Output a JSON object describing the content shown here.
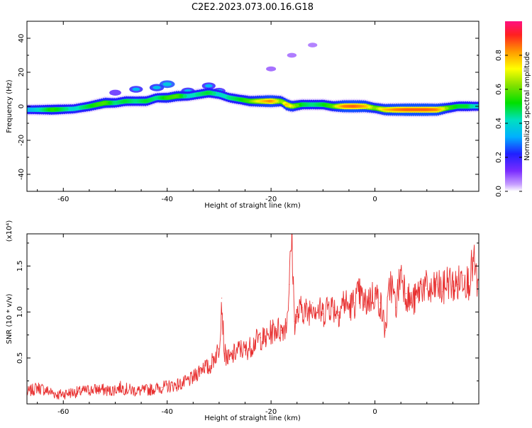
{
  "figure_title": "C2E2.2023.073.00.16.G18",
  "colorbar": {
    "label": "Normalized spectral amplitude",
    "ticks": [
      "0.0",
      "0.2",
      "0.4",
      "0.6",
      "0.8"
    ],
    "tick_values": [
      0.0,
      0.2,
      0.4,
      0.6,
      0.8
    ],
    "range": [
      0,
      1
    ]
  },
  "chart_data": [
    {
      "type": "heatmap",
      "title": "",
      "xlabel": "Height of straight line (km)",
      "ylabel": "Frequency (Hz)",
      "xlim": [
        -67,
        20
      ],
      "ylim": [
        -50,
        50
      ],
      "xticks": [
        "-60",
        "-40",
        "-20",
        "0"
      ],
      "xtick_values": [
        -60,
        -40,
        -20,
        0
      ],
      "yticks": [
        "40",
        "20",
        "0",
        "-20",
        "-40"
      ],
      "ytick_values": [
        40,
        20,
        0,
        -20,
        -40
      ],
      "ridge": {
        "x": [
          -66,
          -62,
          -58,
          -55,
          -52,
          -50,
          -48,
          -46,
          -44,
          -42,
          -40,
          -38,
          -36,
          -34,
          -32,
          -30,
          -28,
          -26,
          -24,
          -22,
          -20,
          -18,
          -17,
          -16,
          -14,
          -12,
          -10,
          -8,
          -6,
          -4,
          -2,
          0,
          2,
          4,
          6,
          8,
          10,
          12,
          14,
          16,
          18,
          19
        ],
        "freq": [
          -2,
          -2,
          -1.5,
          0,
          2,
          2,
          3,
          3,
          3,
          5,
          5,
          6,
          6,
          7,
          8,
          7,
          5,
          4,
          3,
          3,
          3,
          3,
          1,
          0,
          1,
          1,
          1,
          0,
          0,
          0,
          0,
          -1,
          -2,
          -2,
          -2,
          -2,
          -2,
          -2,
          -1,
          0,
          0,
          0
        ],
        "amplitude": [
          0.35,
          0.55,
          0.4,
          0.5,
          0.6,
          0.45,
          0.5,
          0.45,
          0.5,
          0.45,
          0.55,
          0.6,
          0.4,
          0.45,
          0.5,
          0.4,
          0.45,
          0.5,
          0.6,
          0.75,
          0.9,
          0.6,
          0.8,
          0.7,
          0.5,
          0.45,
          0.5,
          0.6,
          0.9,
          0.95,
          0.85,
          0.6,
          0.8,
          0.9,
          0.95,
          0.95,
          0.95,
          0.9,
          0.6,
          0.5,
          0.5,
          0.4
        ]
      },
      "upper_blobs": {
        "x": [
          -50,
          -46,
          -42,
          -40,
          -36,
          -32,
          -30,
          -20,
          -16,
          -12
        ],
        "freq": [
          8,
          10,
          11,
          13,
          9,
          12,
          9,
          22,
          30,
          36
        ],
        "amplitude": [
          0.2,
          0.3,
          0.35,
          0.4,
          0.3,
          0.3,
          0.25,
          0.08,
          0.06,
          0.05
        ]
      }
    },
    {
      "type": "line",
      "title": "",
      "xlabel": "Height of straight line (km)",
      "ylabel": "SNR (10 * v/v)",
      "y_scale_label": "(x10⁴)",
      "xlim": [
        -67,
        20
      ],
      "ylim": [
        0,
        1.85
      ],
      "xticks": [
        "-60",
        "-40",
        "-20",
        "0"
      ],
      "xtick_values": [
        -60,
        -40,
        -20,
        0
      ],
      "yticks": [
        "0.5",
        "1.0",
        "1.5"
      ],
      "ytick_values": [
        0.5,
        1.0,
        1.5
      ],
      "series": [
        {
          "name": "SNR",
          "color": "#e83030",
          "x": [
            -67,
            -65,
            -63,
            -61,
            -59,
            -57,
            -55,
            -53,
            -51,
            -49,
            -47,
            -45,
            -43,
            -41,
            -39,
            -37,
            -35,
            -34,
            -33,
            -32,
            -31,
            -30,
            -29.5,
            -29,
            -28,
            -27,
            -26,
            -25,
            -24,
            -23,
            -22,
            -21,
            -20,
            -19,
            -18,
            -17,
            -16.5,
            -16,
            -15.5,
            -15,
            -14,
            -13,
            -12,
            -11,
            -10,
            -9,
            -8,
            -7,
            -6,
            -5,
            -4,
            -3,
            -2,
            -1,
            0,
            1,
            2,
            3,
            4,
            5,
            6,
            7,
            8,
            9,
            10,
            11,
            12,
            13,
            14,
            15,
            16,
            17,
            18,
            19,
            20
          ],
          "values": [
            0.12,
            0.18,
            0.14,
            0.1,
            0.12,
            0.13,
            0.15,
            0.16,
            0.14,
            0.18,
            0.15,
            0.14,
            0.16,
            0.18,
            0.2,
            0.22,
            0.28,
            0.35,
            0.42,
            0.38,
            0.5,
            0.6,
            1.15,
            0.55,
            0.48,
            0.55,
            0.6,
            0.58,
            0.62,
            0.68,
            0.72,
            0.7,
            0.78,
            0.82,
            0.8,
            0.88,
            1.3,
            1.85,
            0.9,
            0.95,
            1.05,
            0.98,
            1.1,
            1.02,
            0.98,
            1.08,
            1.05,
            1.0,
            1.12,
            1.05,
            1.1,
            1.2,
            1.08,
            1.15,
            1.2,
            1.1,
            0.8,
            1.35,
            1.05,
            1.45,
            1.2,
            1.1,
            1.15,
            1.3,
            1.25,
            1.2,
            1.3,
            1.22,
            1.35,
            1.28,
            1.3,
            1.4,
            1.32,
            1.55,
            1.2
          ]
        }
      ]
    }
  ]
}
